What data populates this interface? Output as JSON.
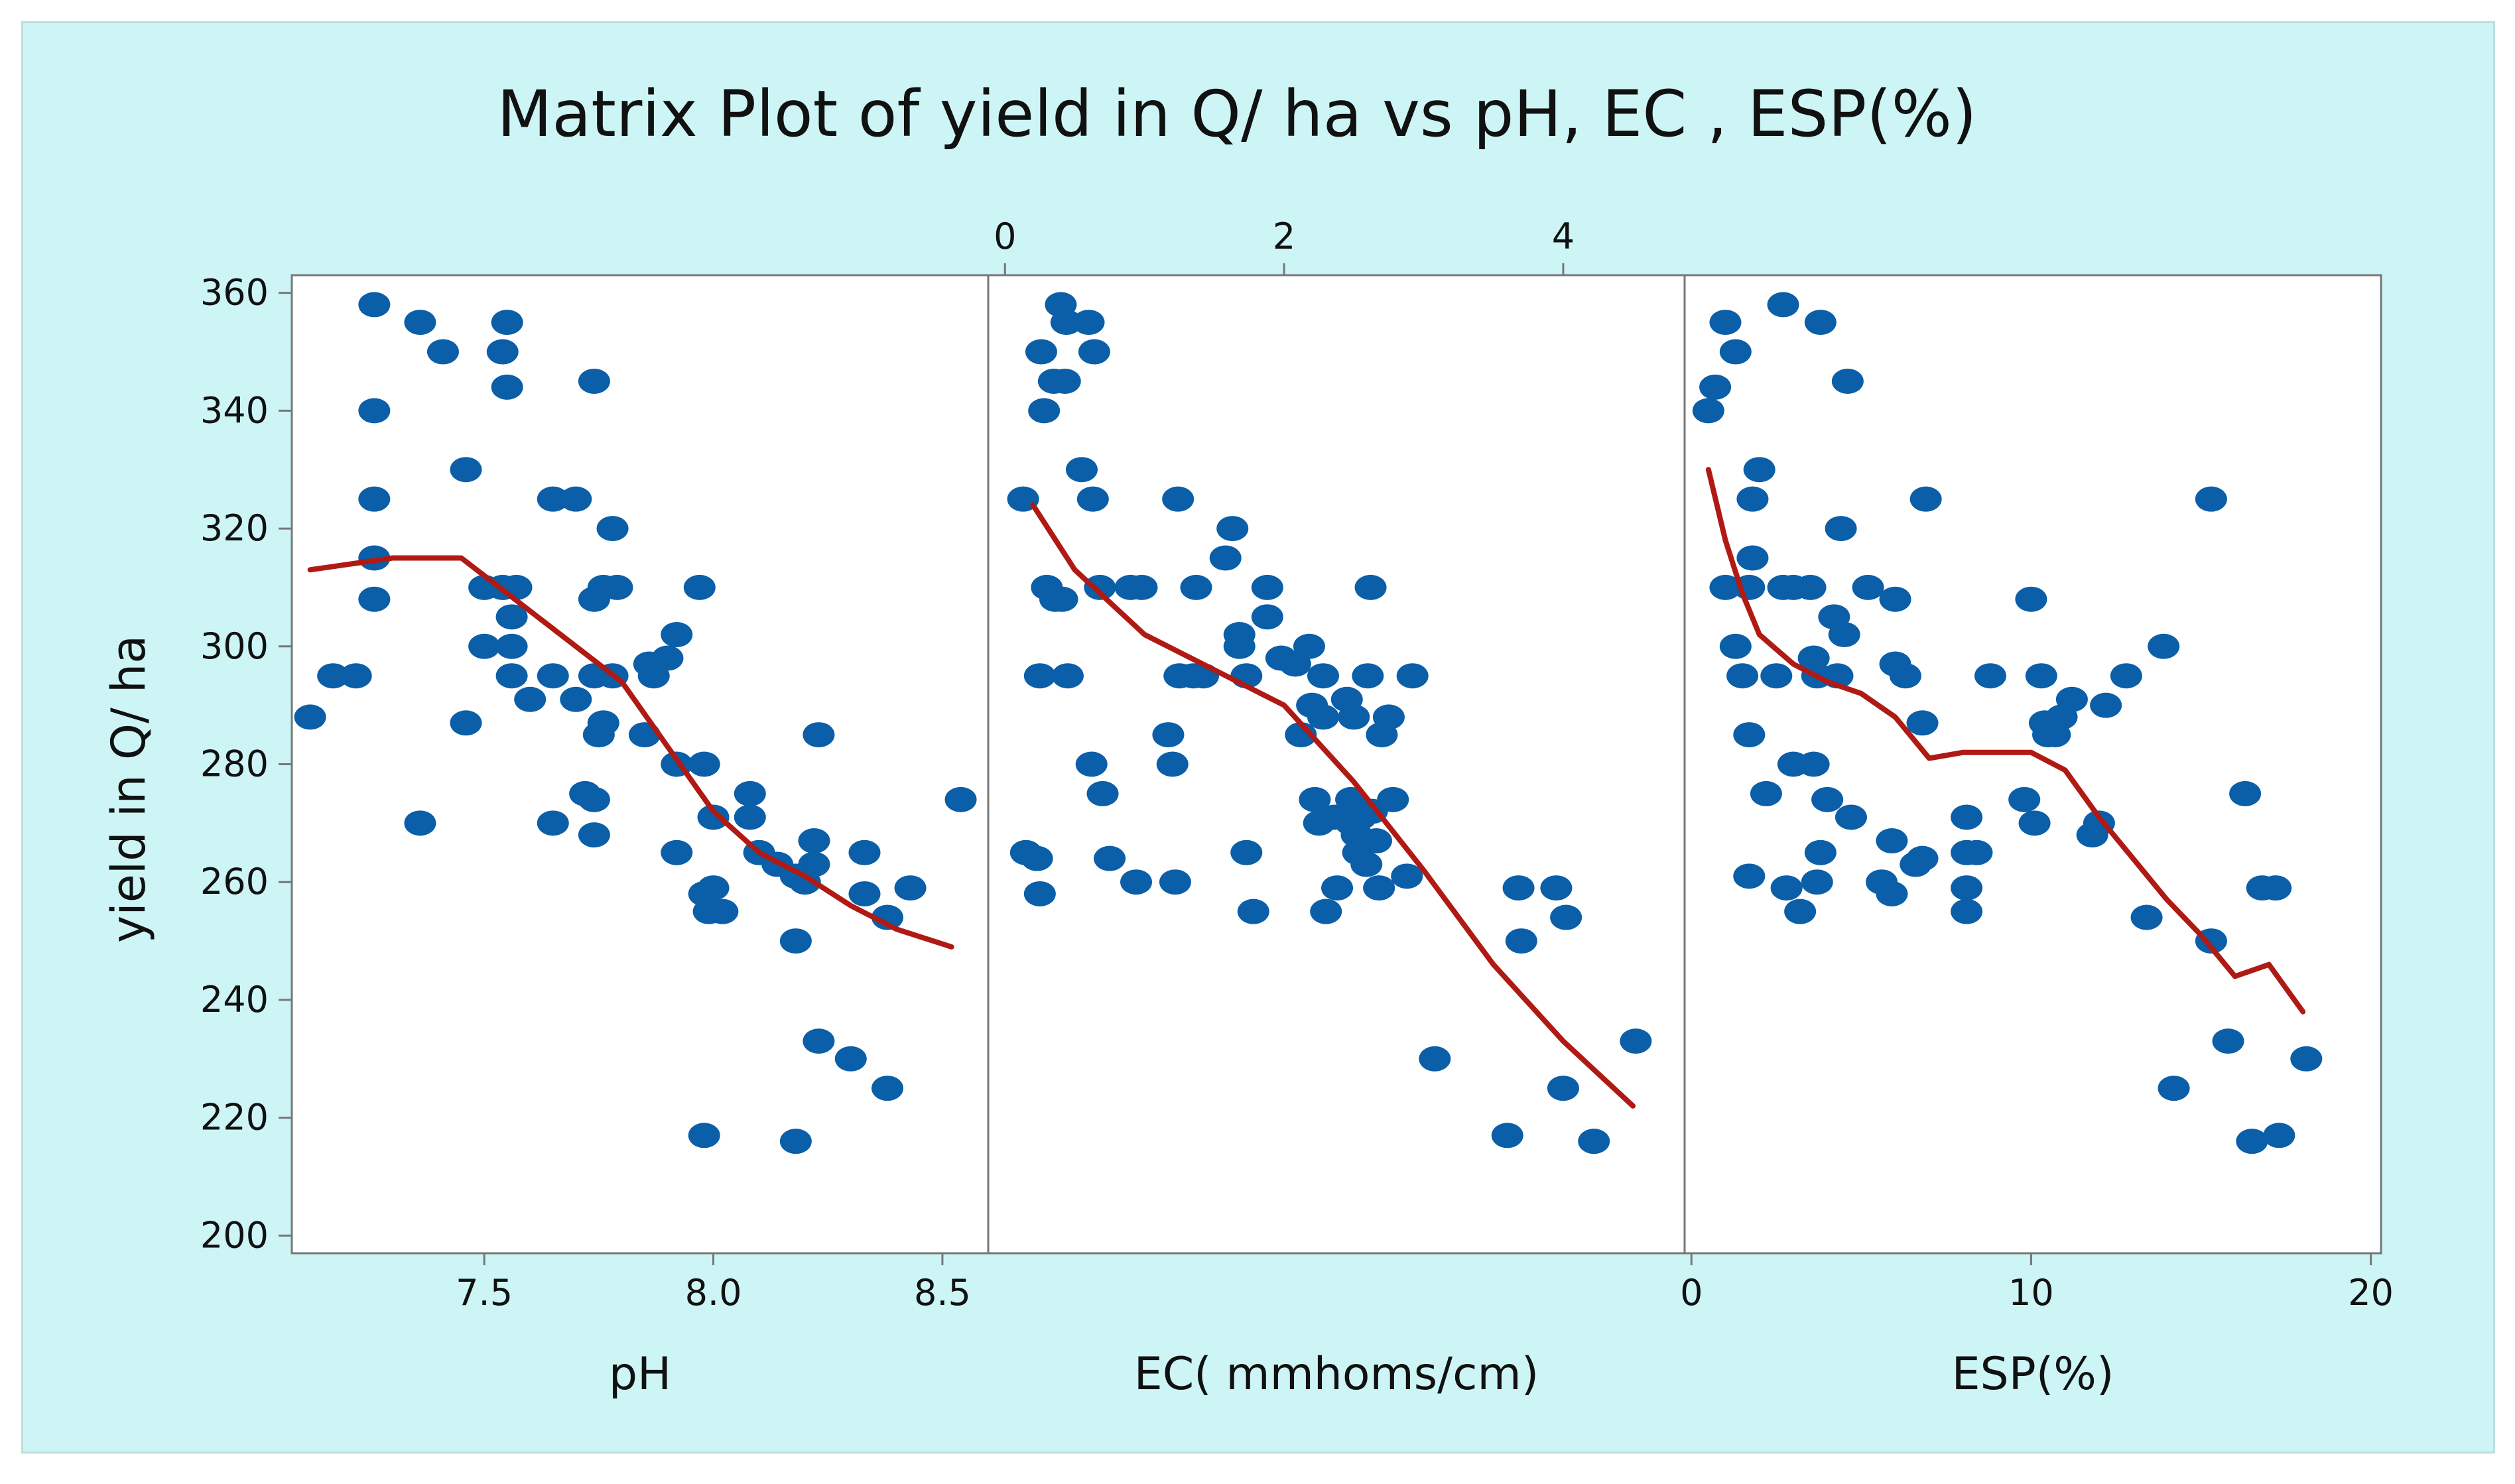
{
  "chart_data": {
    "type": "scatter",
    "title": "Matrix Plot of yield in Q/ ha vs pH, EC , ESP(%)",
    "ylabel": "yield in Q/ ha",
    "ylim": [
      197,
      363
    ],
    "yticks": [
      200,
      220,
      240,
      260,
      280,
      300,
      320,
      340,
      360
    ],
    "colors": {
      "background": "#cdf5f5",
      "points": "#0b5ea8",
      "smooth": "#b01a14",
      "panel": "#ffffff",
      "axis": "#777777",
      "text": "#111111"
    },
    "panels": [
      {
        "name": "ph",
        "xlabel": "pH",
        "xlim": [
          7.08,
          8.6
        ],
        "xticks": [
          7.5,
          8.0,
          8.5
        ],
        "tick_labels": [
          "7.5",
          "8.0",
          "8.5"
        ],
        "tick_side": "bottom",
        "points": [
          [
            7.12,
            288
          ],
          [
            7.17,
            295
          ],
          [
            7.22,
            295
          ],
          [
            7.26,
            358
          ],
          [
            7.26,
            340
          ],
          [
            7.26,
            325
          ],
          [
            7.26,
            315
          ],
          [
            7.26,
            308
          ],
          [
            7.36,
            355
          ],
          [
            7.41,
            350
          ],
          [
            7.36,
            270
          ],
          [
            7.46,
            330
          ],
          [
            7.46,
            287
          ],
          [
            7.5,
            310
          ],
          [
            7.54,
            310
          ],
          [
            7.57,
            310
          ],
          [
            7.55,
            355
          ],
          [
            7.54,
            350
          ],
          [
            7.55,
            344
          ],
          [
            7.56,
            305
          ],
          [
            7.5,
            300
          ],
          [
            7.56,
            300
          ],
          [
            7.56,
            295
          ],
          [
            7.6,
            291
          ],
          [
            7.65,
            325
          ],
          [
            7.7,
            325
          ],
          [
            7.65,
            295
          ],
          [
            7.65,
            270
          ],
          [
            7.7,
            291
          ],
          [
            7.72,
            275
          ],
          [
            7.74,
            274
          ],
          [
            7.74,
            345
          ],
          [
            7.74,
            308
          ],
          [
            7.74,
            295
          ],
          [
            7.75,
            285
          ],
          [
            7.76,
            287
          ],
          [
            7.76,
            310
          ],
          [
            7.79,
            310
          ],
          [
            7.78,
            320
          ],
          [
            7.78,
            295
          ],
          [
            7.74,
            268
          ],
          [
            7.85,
            285
          ],
          [
            7.86,
            297
          ],
          [
            7.87,
            295
          ],
          [
            7.9,
            298
          ],
          [
            7.92,
            302
          ],
          [
            7.92,
            280
          ],
          [
            7.92,
            265
          ],
          [
            7.97,
            310
          ],
          [
            7.98,
            280
          ],
          [
            7.98,
            258
          ],
          [
            8.0,
            271
          ],
          [
            8.0,
            259
          ],
          [
            8.02,
            255
          ],
          [
            7.99,
            255
          ],
          [
            8.08,
            275
          ],
          [
            8.08,
            271
          ],
          [
            8.1,
            265
          ],
          [
            8.14,
            263
          ],
          [
            8.18,
            250
          ],
          [
            8.18,
            261
          ],
          [
            8.2,
            260
          ],
          [
            8.22,
            267
          ],
          [
            8.22,
            263
          ],
          [
            8.23,
            285
          ],
          [
            8.23,
            233
          ],
          [
            8.3,
            230
          ],
          [
            8.33,
            265
          ],
          [
            8.33,
            258
          ],
          [
            8.38,
            254
          ],
          [
            8.38,
            225
          ],
          [
            8.43,
            259
          ],
          [
            8.54,
            274
          ],
          [
            7.98,
            217
          ],
          [
            8.18,
            216
          ]
        ],
        "smooth": [
          [
            7.12,
            313
          ],
          [
            7.3,
            315
          ],
          [
            7.45,
            315
          ],
          [
            7.55,
            309
          ],
          [
            7.7,
            300
          ],
          [
            7.8,
            294
          ],
          [
            7.9,
            283
          ],
          [
            8.0,
            272
          ],
          [
            8.1,
            265
          ],
          [
            8.2,
            261
          ],
          [
            8.3,
            256
          ],
          [
            8.4,
            252
          ],
          [
            8.52,
            249
          ]
        ]
      },
      {
        "name": "ec",
        "xlabel": "EC( mmhoms/cm)",
        "xlim": [
          -0.12,
          4.87
        ],
        "xticks": [
          0,
          2,
          4
        ],
        "tick_labels": [
          "0",
          "2",
          "4"
        ],
        "tick_side": "top",
        "points": [
          [
            0.13,
            325
          ],
          [
            0.15,
            265
          ],
          [
            0.23,
            264
          ],
          [
            0.25,
            258
          ],
          [
            0.25,
            295
          ],
          [
            0.28,
            340
          ],
          [
            0.3,
            310
          ],
          [
            0.36,
            308
          ],
          [
            0.41,
            308
          ],
          [
            0.26,
            350
          ],
          [
            0.35,
            345
          ],
          [
            0.43,
            345
          ],
          [
            0.4,
            358
          ],
          [
            0.44,
            355
          ],
          [
            0.6,
            355
          ],
          [
            0.64,
            350
          ],
          [
            0.55,
            330
          ],
          [
            0.63,
            325
          ],
          [
            0.45,
            295
          ],
          [
            0.62,
            280
          ],
          [
            0.7,
            275
          ],
          [
            0.68,
            310
          ],
          [
            0.75,
            264
          ],
          [
            0.9,
            310
          ],
          [
            0.98,
            310
          ],
          [
            0.94,
            260
          ],
          [
            1.17,
            285
          ],
          [
            1.2,
            280
          ],
          [
            1.24,
            325
          ],
          [
            1.25,
            295
          ],
          [
            1.22,
            260
          ],
          [
            1.37,
            310
          ],
          [
            1.35,
            295
          ],
          [
            1.42,
            295
          ],
          [
            1.58,
            315
          ],
          [
            1.63,
            320
          ],
          [
            1.68,
            302
          ],
          [
            1.68,
            300
          ],
          [
            1.73,
            295
          ],
          [
            1.73,
            265
          ],
          [
            1.78,
            255
          ],
          [
            1.88,
            310
          ],
          [
            1.88,
            305
          ],
          [
            1.98,
            298
          ],
          [
            2.08,
            297
          ],
          [
            2.12,
            285
          ],
          [
            2.18,
            300
          ],
          [
            2.2,
            290
          ],
          [
            2.22,
            274
          ],
          [
            2.25,
            270
          ],
          [
            2.28,
            295
          ],
          [
            2.28,
            288
          ],
          [
            2.3,
            255
          ],
          [
            2.36,
            271
          ],
          [
            2.38,
            259
          ],
          [
            2.45,
            291
          ],
          [
            2.48,
            274
          ],
          [
            2.48,
            270
          ],
          [
            2.5,
            288
          ],
          [
            2.52,
            268
          ],
          [
            2.53,
            265
          ],
          [
            2.55,
            271
          ],
          [
            2.59,
            263
          ],
          [
            2.6,
            295
          ],
          [
            2.62,
            310
          ],
          [
            2.63,
            272
          ],
          [
            2.66,
            267
          ],
          [
            2.68,
            259
          ],
          [
            2.7,
            285
          ],
          [
            2.75,
            288
          ],
          [
            2.78,
            274
          ],
          [
            2.88,
            261
          ],
          [
            2.92,
            295
          ],
          [
            3.08,
            230
          ],
          [
            3.6,
            217
          ],
          [
            3.68,
            259
          ],
          [
            3.7,
            250
          ],
          [
            3.95,
            259
          ],
          [
            4.0,
            225
          ],
          [
            4.02,
            254
          ],
          [
            4.22,
            216
          ],
          [
            4.52,
            233
          ]
        ],
        "smooth": [
          [
            0.2,
            324
          ],
          [
            0.5,
            313
          ],
          [
            1.0,
            302
          ],
          [
            1.5,
            296
          ],
          [
            2.0,
            290
          ],
          [
            2.5,
            277
          ],
          [
            3.0,
            262
          ],
          [
            3.5,
            246
          ],
          [
            4.0,
            233
          ],
          [
            4.5,
            222
          ]
        ]
      },
      {
        "name": "esp",
        "xlabel": "ESP(%)",
        "xlim": [
          -0.2,
          20.3
        ],
        "xticks": [
          0,
          10,
          20
        ],
        "tick_labels": [
          "0",
          "10",
          "20"
        ],
        "tick_side": "bottom",
        "points": [
          [
            0.5,
            340
          ],
          [
            0.7,
            344
          ],
          [
            1.0,
            355
          ],
          [
            1.3,
            350
          ],
          [
            1.0,
            310
          ],
          [
            1.3,
            300
          ],
          [
            1.5,
            295
          ],
          [
            1.7,
            285
          ],
          [
            1.7,
            310
          ],
          [
            1.8,
            315
          ],
          [
            1.8,
            325
          ],
          [
            2.0,
            330
          ],
          [
            2.2,
            275
          ],
          [
            1.7,
            261
          ],
          [
            2.5,
            295
          ],
          [
            2.7,
            310
          ],
          [
            2.7,
            358
          ],
          [
            3.0,
            310
          ],
          [
            2.8,
            259
          ],
          [
            3.2,
            255
          ],
          [
            3.0,
            280
          ],
          [
            3.6,
            280
          ],
          [
            3.5,
            310
          ],
          [
            3.6,
            298
          ],
          [
            3.7,
            295
          ],
          [
            3.8,
            265
          ],
          [
            3.7,
            260
          ],
          [
            3.8,
            355
          ],
          [
            4.0,
            274
          ],
          [
            4.2,
            305
          ],
          [
            4.3,
            295
          ],
          [
            4.4,
            320
          ],
          [
            4.5,
            302
          ],
          [
            4.6,
            345
          ],
          [
            4.7,
            271
          ],
          [
            5.2,
            310
          ],
          [
            5.6,
            260
          ],
          [
            5.9,
            258
          ],
          [
            5.9,
            267
          ],
          [
            6.0,
            308
          ],
          [
            6.0,
            297
          ],
          [
            6.3,
            295
          ],
          [
            6.6,
            263
          ],
          [
            6.8,
            264
          ],
          [
            6.8,
            287
          ],
          [
            6.9,
            325
          ],
          [
            8.1,
            265
          ],
          [
            8.1,
            271
          ],
          [
            8.1,
            259
          ],
          [
            8.1,
            255
          ],
          [
            8.4,
            265
          ],
          [
            8.8,
            295
          ],
          [
            9.8,
            274
          ],
          [
            10.0,
            308
          ],
          [
            10.1,
            270
          ],
          [
            10.3,
            295
          ],
          [
            10.4,
            287
          ],
          [
            10.5,
            285
          ],
          [
            10.7,
            285
          ],
          [
            10.9,
            288
          ],
          [
            11.2,
            291
          ],
          [
            11.8,
            268
          ],
          [
            12.0,
            270
          ],
          [
            12.2,
            290
          ],
          [
            12.8,
            295
          ],
          [
            13.4,
            254
          ],
          [
            13.9,
            300
          ],
          [
            14.2,
            225
          ],
          [
            15.3,
            325
          ],
          [
            15.3,
            250
          ],
          [
            15.8,
            233
          ],
          [
            16.3,
            275
          ],
          [
            16.5,
            216
          ],
          [
            16.8,
            259
          ],
          [
            17.2,
            259
          ],
          [
            17.3,
            217
          ],
          [
            18.1,
            230
          ]
        ],
        "smooth": [
          [
            0.5,
            330
          ],
          [
            1.0,
            318
          ],
          [
            1.5,
            309
          ],
          [
            2.0,
            302
          ],
          [
            3.0,
            297
          ],
          [
            4.0,
            294
          ],
          [
            5.0,
            292
          ],
          [
            6.0,
            288
          ],
          [
            7.0,
            281
          ],
          [
            8.0,
            282
          ],
          [
            9.0,
            282
          ],
          [
            10.0,
            282
          ],
          [
            11.0,
            279
          ],
          [
            12.0,
            271
          ],
          [
            13.0,
            264
          ],
          [
            14.0,
            257
          ],
          [
            15.0,
            251
          ],
          [
            16.0,
            244
          ],
          [
            17.0,
            246
          ],
          [
            18.0,
            238
          ]
        ]
      }
    ]
  }
}
